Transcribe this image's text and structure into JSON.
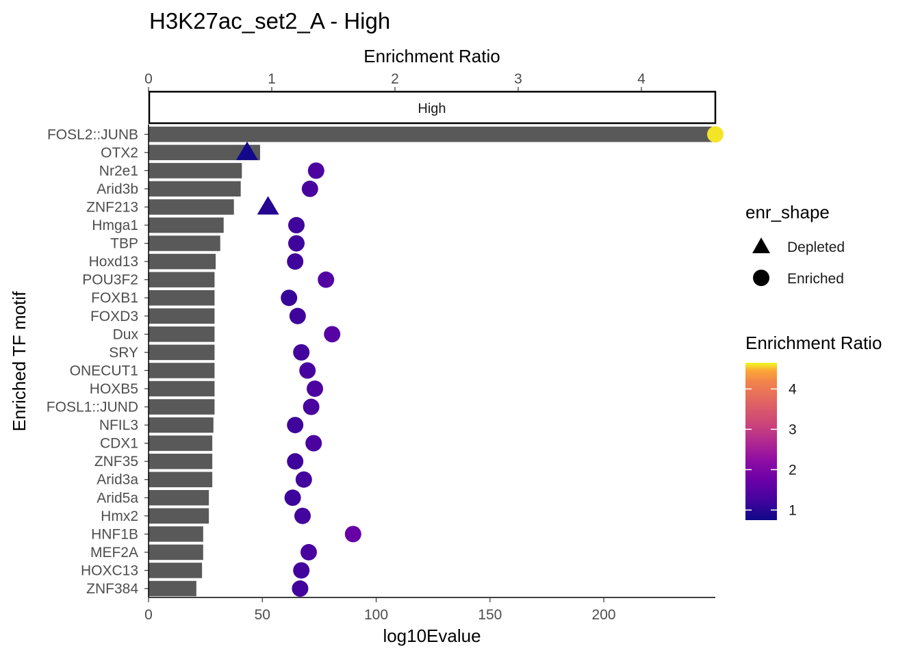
{
  "chart_data": {
    "type": "bar",
    "title": "H3K27ac_set2_A - High",
    "facet_label": "High",
    "xlabel": "log10Evalue",
    "ylabel": "Enriched TF motif",
    "secondary_xlabel": "Enrichment Ratio",
    "xlim": [
      0,
      249
    ],
    "xticks": [
      0,
      50,
      100,
      150,
      200
    ],
    "secondary_xlim": [
      0,
      4.6
    ],
    "secondary_xticks": [
      0,
      1,
      2,
      3,
      4
    ],
    "categories": [
      "FOSL2::JUNB",
      "OTX2",
      "Nr2e1",
      "Arid3b",
      "ZNF213",
      "Hmga1",
      "TBP",
      "Hoxd13",
      "POU3F2",
      "FOXB1",
      "FOXD3",
      "Dux",
      "SRY",
      "ONECUT1",
      "HOXB5",
      "FOSL1::JUND",
      "NFIL3",
      "CDX1",
      "ZNF35",
      "Arid3a",
      "Arid5a",
      "Hmx2",
      "HNF1B",
      "MEF2A",
      "HOXC13",
      "ZNF384"
    ],
    "values": [
      249,
      49,
      41,
      40.5,
      37.5,
      33,
      31.5,
      29.5,
      29,
      29,
      29,
      29,
      29,
      29,
      29,
      29,
      28.5,
      28,
      28,
      28,
      26.5,
      26.5,
      24,
      24,
      23.5,
      21
    ],
    "enrichment_ratio": [
      4.6,
      0.8,
      1.36,
      1.31,
      0.97,
      1.2,
      1.2,
      1.19,
      1.44,
      1.14,
      1.21,
      1.49,
      1.24,
      1.29,
      1.35,
      1.32,
      1.19,
      1.34,
      1.19,
      1.26,
      1.17,
      1.25,
      1.66,
      1.3,
      1.24,
      1.23
    ],
    "enr_shape": [
      "Enriched",
      "Depleted",
      "Enriched",
      "Enriched",
      "Depleted",
      "Enriched",
      "Enriched",
      "Enriched",
      "Enriched",
      "Enriched",
      "Enriched",
      "Enriched",
      "Enriched",
      "Enriched",
      "Enriched",
      "Enriched",
      "Enriched",
      "Enriched",
      "Enriched",
      "Enriched",
      "Enriched",
      "Enriched",
      "Enriched",
      "Enriched",
      "Enriched",
      "Enriched"
    ],
    "bar_color": "#595959",
    "shape_legend": {
      "title": "enr_shape",
      "entries": [
        "Depleted",
        "Enriched"
      ]
    },
    "color_legend": {
      "title": "Enrichment Ratio",
      "range": [
        0.75,
        4.65
      ],
      "ticks": [
        1,
        2,
        3,
        4
      ],
      "palette": "plasma"
    }
  }
}
